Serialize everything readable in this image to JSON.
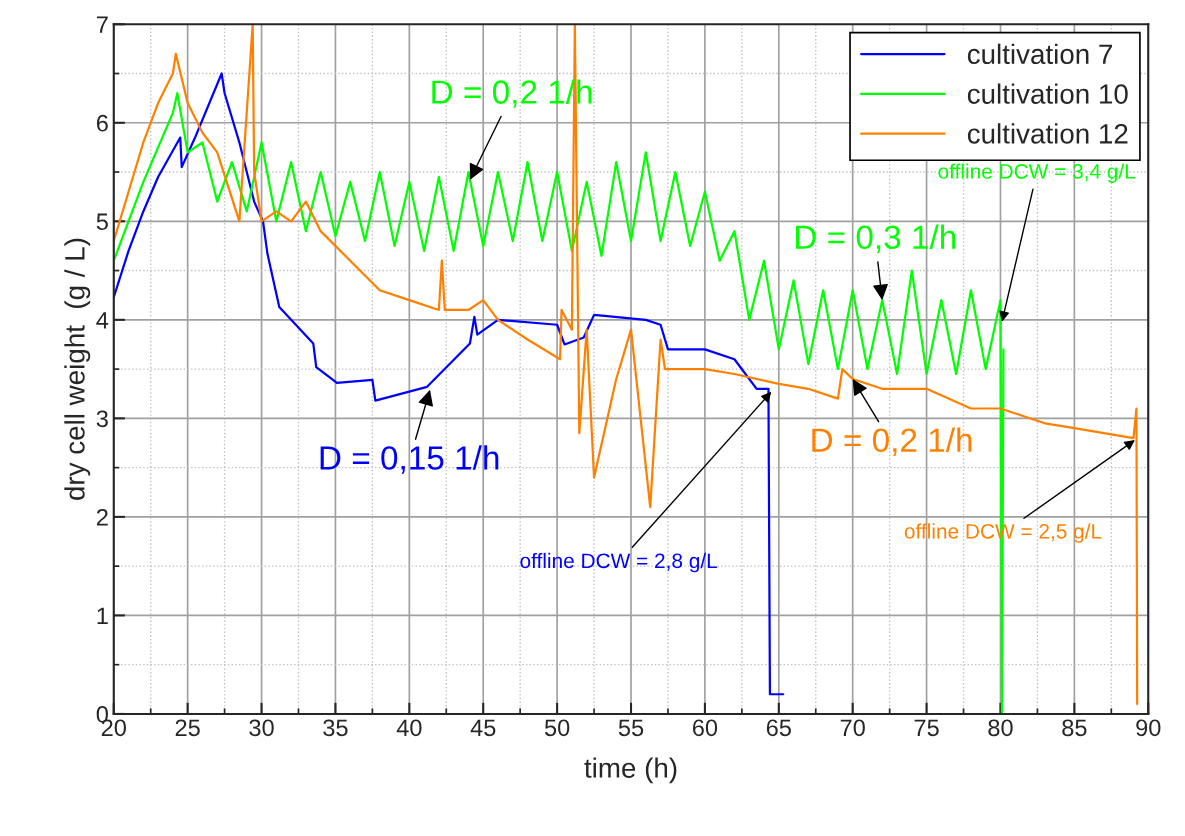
{
  "chart_data": {
    "type": "line",
    "xlabel": "time (h)",
    "ylabel": "dry cell weight  (g / L)",
    "xlim": [
      20,
      90
    ],
    "xticks": [
      20,
      25,
      30,
      35,
      40,
      45,
      50,
      55,
      60,
      65,
      70,
      75,
      80,
      85,
      90
    ],
    "ylim": [
      0,
      7
    ],
    "yticks": [
      0,
      1,
      2,
      3,
      4,
      5,
      6,
      7
    ],
    "grid": true,
    "legend": "top right",
    "marker": "none",
    "line_style": "solid",
    "series": [
      {
        "name": "cultivation 7",
        "color": "#0000ff",
        "x": [
          20,
          21,
          22,
          23,
          24.5,
          24.6,
          25.5,
          27.3,
          27.5,
          28.5,
          29.5,
          30.1,
          30.4,
          31.2,
          33.5,
          33.7,
          35.1,
          37.5,
          37.7,
          41.2,
          44.1,
          44.4,
          44.6,
          46,
          50,
          50.5,
          51.8,
          52.5,
          56,
          57,
          57.5,
          60,
          62,
          63.5,
          64.3,
          64.4,
          65.3
        ],
        "values": [
          4.23,
          4.7,
          5.1,
          5.45,
          5.85,
          5.55,
          5.85,
          6.5,
          6.3,
          5.8,
          5.2,
          5.0,
          4.67,
          4.13,
          3.76,
          3.52,
          3.36,
          3.39,
          3.18,
          3.32,
          3.76,
          4.03,
          3.85,
          4.0,
          3.95,
          3.75,
          3.82,
          4.05,
          4.0,
          3.95,
          3.7,
          3.7,
          3.6,
          3.3,
          3.3,
          0.2,
          0.2
        ]
      },
      {
        "name": "cultivation 10",
        "color": "#00ff00",
        "x": [
          20,
          22,
          24,
          24.3,
          25,
          26,
          27,
          28,
          29,
          30,
          31,
          32,
          33,
          34,
          35,
          36,
          37,
          38,
          39,
          40,
          41,
          42,
          43,
          44,
          45,
          46,
          47,
          48,
          49,
          50,
          51,
          52,
          53,
          54,
          55,
          56,
          57,
          58,
          59,
          60,
          61,
          62,
          63,
          64,
          65,
          66,
          67,
          68,
          69,
          70,
          71,
          72,
          73,
          74,
          75,
          76,
          77,
          78,
          79,
          80,
          80.1,
          80.2
        ],
        "values": [
          4.6,
          5.4,
          6.1,
          6.3,
          5.7,
          5.8,
          5.2,
          5.6,
          5.1,
          5.8,
          5.0,
          5.6,
          4.9,
          5.5,
          4.85,
          5.4,
          4.8,
          5.5,
          4.75,
          5.4,
          4.7,
          5.45,
          4.7,
          5.5,
          4.75,
          5.5,
          4.8,
          5.6,
          4.8,
          5.5,
          4.7,
          5.4,
          4.65,
          5.6,
          4.8,
          5.7,
          4.8,
          5.5,
          4.75,
          5.3,
          4.6,
          4.9,
          4.0,
          4.6,
          3.7,
          4.4,
          3.55,
          4.3,
          3.5,
          4.3,
          3.5,
          4.2,
          3.45,
          4.5,
          3.45,
          4.2,
          3.45,
          4.3,
          3.5,
          4.2,
          0.0,
          3.7
        ]
      },
      {
        "name": "cultivation 12",
        "color": "#ff8000",
        "x": [
          20,
          21,
          22,
          23,
          24,
          24.2,
          25,
          26,
          27,
          28.5,
          29.4,
          29.5,
          30,
          31,
          32,
          33,
          34,
          36,
          38,
          40,
          42,
          42.2,
          42.4,
          44,
          45,
          46,
          48,
          50.2,
          50.3,
          51,
          51.2,
          51.5,
          52,
          52.5,
          54,
          55,
          56.3,
          57,
          57.3,
          60,
          62,
          65,
          67,
          69,
          69.3,
          70,
          72,
          75,
          78,
          80,
          83,
          85,
          87,
          89,
          89.2,
          89.25
        ],
        "values": [
          4.8,
          5.3,
          5.8,
          6.2,
          6.5,
          6.7,
          6.2,
          5.9,
          5.7,
          5.0,
          7.0,
          5.5,
          5.0,
          5.1,
          5.0,
          5.2,
          4.9,
          4.6,
          4.3,
          4.2,
          4.1,
          4.6,
          4.1,
          4.1,
          4.2,
          4.0,
          3.8,
          3.6,
          4.1,
          3.9,
          7.0,
          2.85,
          3.9,
          2.4,
          3.4,
          3.9,
          2.1,
          3.8,
          3.5,
          3.5,
          3.45,
          3.35,
          3.3,
          3.2,
          3.5,
          3.4,
          3.3,
          3.3,
          3.1,
          3.1,
          2.95,
          2.9,
          2.85,
          2.8,
          3.1,
          0.1
        ]
      }
    ],
    "annotations": [
      {
        "text": "D = 0,2 1/h",
        "x": 44.1,
        "y": 5.42
      },
      {
        "text": "D = 0,3 1/h",
        "x": 72,
        "y": 4.2
      },
      {
        "text": "offline DCW = 3,4 g/L",
        "x": 80.1,
        "y": 3.98
      },
      {
        "text": "D = 0,15 1/h",
        "x": 41.4,
        "y": 3.29
      },
      {
        "text": "offline DCW = 2,8 g/L",
        "x": 64.5,
        "y": 3.27
      },
      {
        "text": "D = 0,2 1/h",
        "x": 70,
        "y": 3.4
      },
      {
        "text": "offline DCW = 2,5 g/L",
        "x": 89.1,
        "y": 2.78
      }
    ]
  }
}
